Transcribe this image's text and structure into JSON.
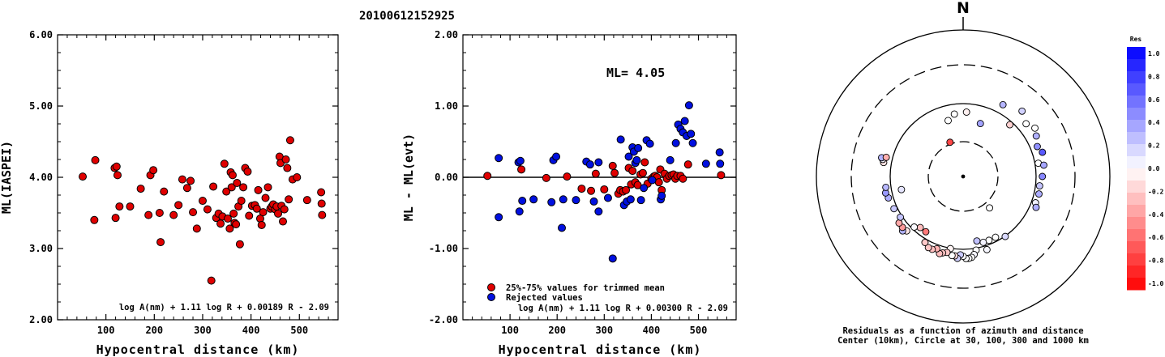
{
  "page_title": "20100612152925",
  "chart_data": [
    {
      "type": "scatter",
      "title": "",
      "xlabel": "Hypocentral distance (km)",
      "ylabel": "ML(IASPEI)",
      "xlim": [
        0,
        580
      ],
      "ylim": [
        2.0,
        6.0
      ],
      "xticks": [
        "100",
        "200",
        "300",
        "400",
        "500"
      ],
      "yticks": [
        "2.00",
        "3.00",
        "4.00",
        "5.00",
        "6.00"
      ],
      "formula": "log A(nm) + 1.11 log R + 0.00189 R - 2.09",
      "marker_color": "#e00000",
      "points": [
        [
          52,
          4.01
        ],
        [
          78,
          4.24
        ],
        [
          76,
          3.4
        ],
        [
          118,
          4.13
        ],
        [
          122,
          4.15
        ],
        [
          124,
          4.03
        ],
        [
          120,
          3.43
        ],
        [
          128,
          3.59
        ],
        [
          150,
          3.59
        ],
        [
          172,
          3.84
        ],
        [
          188,
          3.47
        ],
        [
          192,
          4.03
        ],
        [
          198,
          4.1
        ],
        [
          213,
          3.09
        ],
        [
          211,
          3.5
        ],
        [
          220,
          3.8
        ],
        [
          240,
          3.47
        ],
        [
          250,
          3.61
        ],
        [
          258,
          3.97
        ],
        [
          268,
          3.85
        ],
        [
          275,
          3.95
        ],
        [
          280,
          3.51
        ],
        [
          288,
          3.28
        ],
        [
          300,
          3.67
        ],
        [
          310,
          3.55
        ],
        [
          318,
          2.55
        ],
        [
          322,
          3.87
        ],
        [
          328,
          3.43
        ],
        [
          333,
          3.49
        ],
        [
          337,
          3.35
        ],
        [
          341,
          3.45
        ],
        [
          345,
          4.19
        ],
        [
          349,
          3.8
        ],
        [
          352,
          3.42
        ],
        [
          356,
          3.28
        ],
        [
          358,
          4.07
        ],
        [
          360,
          3.86
        ],
        [
          362,
          4.03
        ],
        [
          364,
          3.49
        ],
        [
          366,
          3.36
        ],
        [
          369,
          3.34
        ],
        [
          371,
          3.92
        ],
        [
          374,
          3.59
        ],
        [
          377,
          3.06
        ],
        [
          380,
          3.67
        ],
        [
          384,
          3.86
        ],
        [
          388,
          4.13
        ],
        [
          393,
          4.08
        ],
        [
          396,
          3.46
        ],
        [
          402,
          3.6
        ],
        [
          408,
          3.61
        ],
        [
          412,
          3.56
        ],
        [
          415,
          3.82
        ],
        [
          419,
          3.42
        ],
        [
          422,
          3.33
        ],
        [
          425,
          3.51
        ],
        [
          430,
          3.71
        ],
        [
          435,
          3.86
        ],
        [
          440,
          3.56
        ],
        [
          443,
          3.59
        ],
        [
          446,
          3.62
        ],
        [
          450,
          3.55
        ],
        [
          453,
          3.59
        ],
        [
          456,
          3.49
        ],
        [
          459,
          4.29
        ],
        [
          461,
          4.2
        ],
        [
          463,
          3.6
        ],
        [
          466,
          3.38
        ],
        [
          469,
          3.55
        ],
        [
          472,
          4.25
        ],
        [
          475,
          4.13
        ],
        [
          478,
          3.69
        ],
        [
          481,
          4.52
        ],
        [
          486,
          3.97
        ],
        [
          495,
          4.0
        ],
        [
          516,
          3.68
        ],
        [
          545,
          3.79
        ],
        [
          546,
          3.63
        ],
        [
          547,
          3.47
        ]
      ]
    },
    {
      "type": "scatter",
      "title": "",
      "xlabel": "Hypocentral distance (km)",
      "ylabel": "ML - ML(evt)",
      "xlim": [
        0,
        580
      ],
      "ylim": [
        -2.0,
        2.0
      ],
      "xticks": [
        "100",
        "200",
        "300",
        "400",
        "500"
      ],
      "yticks": [
        "-2.00",
        "-1.00",
        "0.00",
        "1.00",
        "2.00"
      ],
      "annotation": "ML= 4.05",
      "formula": "log A(nm) + 1.11 log R + 0.00300 R - 2.09",
      "legend": [
        "25%-75% values for trimmed mean",
        "Rejected values"
      ],
      "legend_colors": [
        "#e00000",
        "#0010e0"
      ],
      "series": [
        {
          "name": "25%-75% values for trimmed mean",
          "color": "#e00000",
          "points": [
            [
              52,
              0.02
            ],
            [
              124,
              0.11
            ],
            [
              177,
              -0.01
            ],
            [
              221,
              0.01
            ],
            [
              252,
              -0.16
            ],
            [
              272,
              -0.19
            ],
            [
              282,
              0.05
            ],
            [
              300,
              -0.17
            ],
            [
              318,
              0.16
            ],
            [
              322,
              0.06
            ],
            [
              330,
              -0.23
            ],
            [
              334,
              -0.18
            ],
            [
              340,
              -0.2
            ],
            [
              346,
              -0.18
            ],
            [
              352,
              0.13
            ],
            [
              357,
              -0.1
            ],
            [
              360,
              0.09
            ],
            [
              366,
              -0.07
            ],
            [
              371,
              -0.11
            ],
            [
              377,
              0.04
            ],
            [
              382,
              0.06
            ],
            [
              386,
              0.21
            ],
            [
              392,
              -0.09
            ],
            [
              400,
              -0.02
            ],
            [
              405,
              0.01
            ],
            [
              408,
              0.02
            ],
            [
              412,
              0.0
            ],
            [
              416,
              -0.07
            ],
            [
              419,
              0.11
            ],
            [
              422,
              -0.18
            ],
            [
              428,
              0.05
            ],
            [
              433,
              -0.02
            ],
            [
              438,
              0.02
            ],
            [
              443,
              0.03
            ],
            [
              447,
              0.04
            ],
            [
              451,
              -0.02
            ],
            [
              455,
              0.02
            ],
            [
              462,
              0.02
            ],
            [
              467,
              -0.02
            ],
            [
              478,
              0.18
            ],
            [
              548,
              0.03
            ]
          ]
        },
        {
          "name": "Rejected values",
          "color": "#0010e0",
          "points": [
            [
              76,
              0.27
            ],
            [
              76,
              -0.56
            ],
            [
              118,
              0.21
            ],
            [
              122,
              0.23
            ],
            [
              126,
              -0.33
            ],
            [
              120,
              -0.48
            ],
            [
              150,
              -0.31
            ],
            [
              188,
              -0.35
            ],
            [
              192,
              0.24
            ],
            [
              198,
              0.29
            ],
            [
              210,
              -0.71
            ],
            [
              213,
              -0.31
            ],
            [
              240,
              -0.32
            ],
            [
              262,
              0.22
            ],
            [
              270,
              0.18
            ],
            [
              278,
              -0.34
            ],
            [
              288,
              -0.48
            ],
            [
              288,
              0.21
            ],
            [
              308,
              -0.29
            ],
            [
              318,
              -1.14
            ],
            [
              335,
              0.53
            ],
            [
              342,
              -0.39
            ],
            [
              348,
              -0.34
            ],
            [
              352,
              0.29
            ],
            [
              356,
              -0.31
            ],
            [
              360,
              0.42
            ],
            [
              363,
              0.36
            ],
            [
              366,
              0.2
            ],
            [
              369,
              0.24
            ],
            [
              372,
              0.41
            ],
            [
              378,
              -0.32
            ],
            [
              384,
              -0.15
            ],
            [
              390,
              0.52
            ],
            [
              397,
              0.47
            ],
            [
              402,
              -0.04
            ],
            [
              420,
              -0.31
            ],
            [
              422,
              -0.26
            ],
            [
              440,
              0.24
            ],
            [
              452,
              0.48
            ],
            [
              457,
              0.74
            ],
            [
              462,
              0.68
            ],
            [
              467,
              0.63
            ],
            [
              471,
              0.79
            ],
            [
              475,
              0.58
            ],
            [
              480,
              1.01
            ],
            [
              484,
              0.61
            ],
            [
              488,
              0.48
            ],
            [
              516,
              0.19
            ],
            [
              545,
              0.35
            ],
            [
              546,
              0.19
            ]
          ]
        }
      ]
    },
    {
      "type": "polar-scatter",
      "title": "",
      "north_label": "N",
      "caption_line1": "Residuals as a function of azimuth and distance",
      "caption_line2": "Center (10km), Circle at 30, 100, 300 and 1000 km",
      "colorbar_title": "Res",
      "colorbar_ticks": [
        "1.0",
        "0.8",
        "0.6",
        "0.4",
        "0.2",
        "0.0",
        "-0.2",
        "-0.4",
        "-0.6",
        "-0.8",
        "-1.0"
      ],
      "colorbar_neg_color": "#ff0000",
      "colorbar_pos_color": "#0000ff",
      "points": [
        [
          3,
          440,
          -0.06
        ],
        [
          18,
          380,
          0.36
        ],
        [
          29,
          560,
          0.29
        ],
        [
          42,
          475,
          -0.18
        ],
        [
          42,
          600,
          0.18
        ],
        [
          50,
          560,
          0.0
        ],
        [
          56,
          590,
          0.0
        ],
        [
          61,
          570,
          0.31
        ],
        [
          68,
          545,
          0.44
        ],
        [
          73,
          565,
          0.65
        ],
        [
          80,
          520,
          0.0
        ],
        [
          82,
          555,
          0.35
        ],
        [
          90,
          540,
          0.47
        ],
        [
          97,
          525,
          0.23
        ],
        [
          103,
          530,
          0.33
        ],
        [
          110,
          525,
          0.06
        ],
        [
          113,
          540,
          0.32
        ],
        [
          140,
          280,
          0.0
        ],
        [
          145,
          500,
          0.15
        ],
        [
          152,
          470,
          0.0
        ],
        [
          158,
          470,
          0.0
        ],
        [
          163,
          470,
          0.05
        ],
        [
          168,
          450,
          0.24
        ],
        [
          162,
          525,
          0.03
        ],
        [
          170,
          510,
          0.0
        ],
        [
          172,
          538,
          0.04
        ],
        [
          174,
          555,
          0.0
        ],
        [
          176,
          560,
          0.0
        ],
        [
          178,
          560,
          0.0
        ],
        [
          180,
          545,
          0.0
        ],
        [
          182,
          535,
          0.2
        ],
        [
          184,
          560,
          0.18
        ],
        [
          186,
          545,
          -0.15
        ],
        [
          188,
          545,
          0.0
        ],
        [
          190,
          500,
          -0.04
        ],
        [
          192,
          530,
          -0.22
        ],
        [
          195,
          540,
          -0.25
        ],
        [
          197,
          550,
          -0.26
        ],
        [
          200,
          525,
          -0.3
        ],
        [
          203,
          540,
          -0.25
        ],
        [
          206,
          540,
          -0.22
        ],
        [
          210,
          520,
          -0.21
        ],
        [
          214,
          455,
          -0.52
        ],
        [
          220,
          455,
          -0.26
        ],
        [
          224,
          480,
          0.02
        ],
        [
          226,
          535,
          -0.09
        ],
        [
          228,
          555,
          0.3
        ],
        [
          230,
          540,
          -0.4
        ],
        [
          234,
          540,
          -0.34
        ],
        [
          237,
          510,
          0.23
        ],
        [
          245,
          520,
          0.22
        ],
        [
          258,
          430,
          0.1
        ],
        [
          254,
          530,
          0.32
        ],
        [
          258,
          540,
          0.4
        ],
        [
          262,
          532,
          0.28
        ],
        [
          280,
          550,
          -0.11
        ],
        [
          282,
          560,
          0.04
        ],
        [
          283,
          570,
          0.3
        ],
        [
          284,
          540,
          -0.31
        ],
        [
          339,
          250,
          -0.72
        ],
        [
          345,
          395,
          0.0
        ],
        [
          352,
          430,
          0.0
        ]
      ]
    }
  ]
}
